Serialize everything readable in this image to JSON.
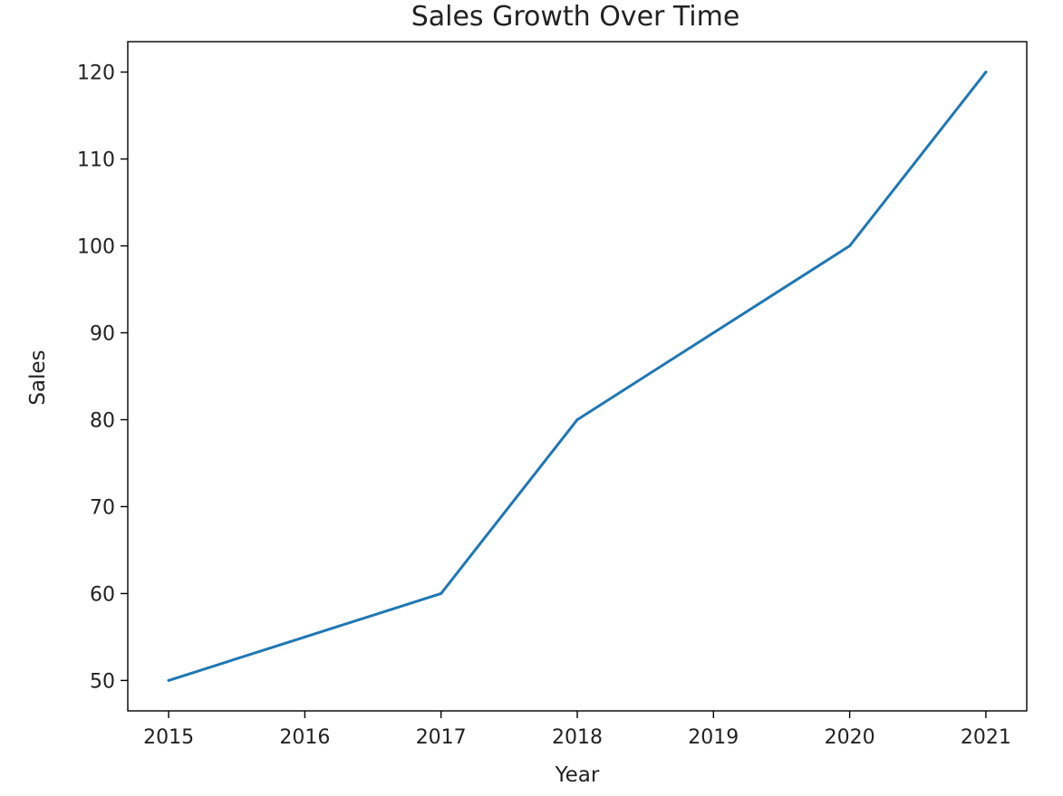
{
  "chart_data": {
    "type": "line",
    "title": "Sales Growth Over Time",
    "xlabel": "Year",
    "ylabel": "Sales",
    "x": [
      2015,
      2016,
      2017,
      2018,
      2019,
      2020,
      2021
    ],
    "series": [
      {
        "values": [
          50,
          55,
          60,
          80,
          90,
          100,
          120
        ],
        "color": "#1f77b4"
      }
    ],
    "xticks": [
      "2015",
      "2016",
      "2017",
      "2018",
      "2019",
      "2020",
      "2021"
    ],
    "yticks": [
      "50",
      "60",
      "70",
      "80",
      "90",
      "100",
      "110",
      "120"
    ],
    "xlim": [
      2014.7,
      2021.3
    ],
    "ylim": [
      46.5,
      123.5
    ],
    "grid": false,
    "legend": "none"
  }
}
